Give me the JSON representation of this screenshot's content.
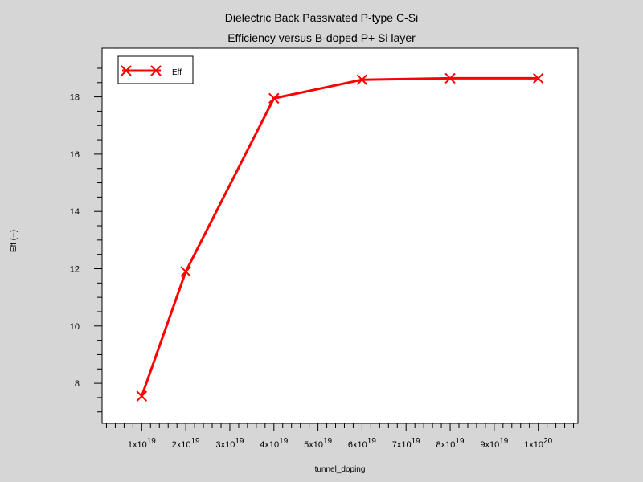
{
  "chart_data": {
    "type": "line",
    "title": "Dielectric Back Passivated P-type C-Si",
    "subtitle": "Efficiency versus B-doped P+ Si layer",
    "xlabel": "tunnel_doping",
    "ylabel": "Eff (--)",
    "x_unit_exponent": 19,
    "x": [
      1e+19,
      2e+19,
      4e+19,
      6e+19,
      8e+19,
      1e+20
    ],
    "xlim": [
      1e+18,
      1.09e+20
    ],
    "ylim": [
      6.6,
      19.7
    ],
    "x_ticks": [
      {
        "mantissa": "1x10",
        "exp": "19"
      },
      {
        "mantissa": "2x10",
        "exp": "19"
      },
      {
        "mantissa": "3x10",
        "exp": "19"
      },
      {
        "mantissa": "4x10",
        "exp": "19"
      },
      {
        "mantissa": "5x10",
        "exp": "19"
      },
      {
        "mantissa": "6x10",
        "exp": "19"
      },
      {
        "mantissa": "7x10",
        "exp": "19"
      },
      {
        "mantissa": "8x10",
        "exp": "19"
      },
      {
        "mantissa": "9x10",
        "exp": "19"
      },
      {
        "mantissa": "1x10",
        "exp": "20"
      }
    ],
    "y_ticks": [
      "8",
      "10",
      "12",
      "14",
      "16",
      "18"
    ],
    "grid": false,
    "legend_position": "top-left",
    "series": [
      {
        "name": "Eff",
        "color": "#ff0000",
        "marker": "x",
        "values": [
          7.55,
          11.9,
          17.95,
          18.6,
          18.65,
          18.65
        ]
      }
    ]
  }
}
